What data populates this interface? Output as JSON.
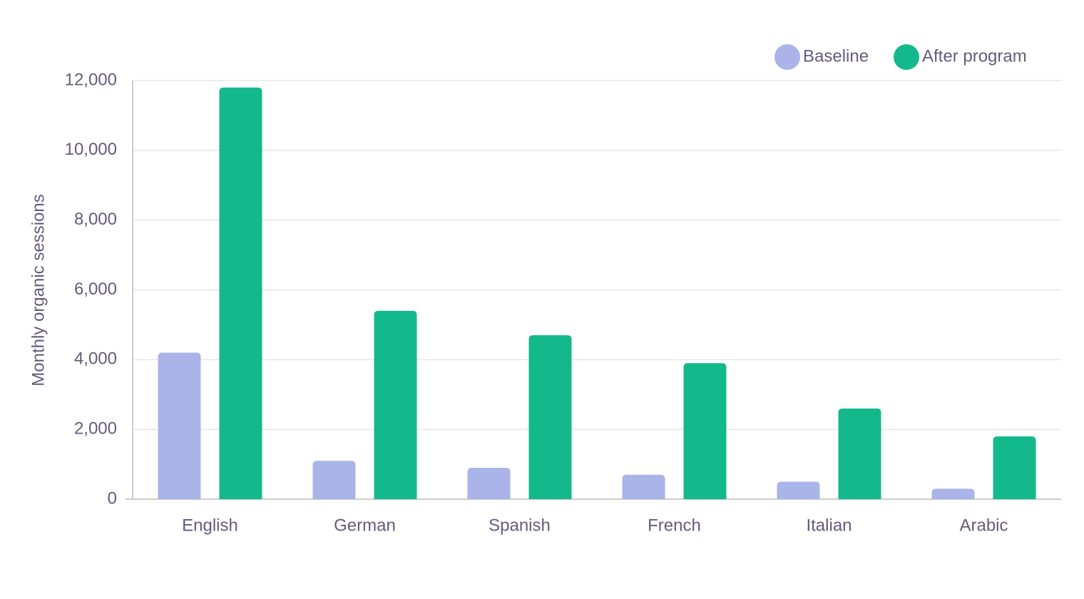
{
  "chart_data": {
    "type": "bar",
    "y_label": "Monthly organic sessions",
    "categories": [
      "English",
      "German",
      "Spanish",
      "French",
      "Italian",
      "Arabic"
    ],
    "series": [
      {
        "name": "Baseline",
        "color": "#aab4e8",
        "values": [
          4200,
          1100,
          900,
          700,
          500,
          300
        ]
      },
      {
        "name": "After program",
        "color": "#13b98a",
        "values": [
          11800,
          5400,
          4700,
          3900,
          2600,
          1800
        ]
      }
    ],
    "ylim": [
      0,
      12000
    ],
    "yticks": [
      0,
      {
        "value": 2000,
        "label": "2,000"
      },
      {
        "value": 4000,
        "label": "4,000"
      },
      {
        "value": 6000,
        "label": "6,000"
      },
      {
        "value": 8000,
        "label": "8,000"
      },
      {
        "value": 10000,
        "label": "10,000"
      },
      {
        "value": 12000,
        "label": "12,000"
      }
    ],
    "grid": true,
    "legend": "top-right"
  }
}
